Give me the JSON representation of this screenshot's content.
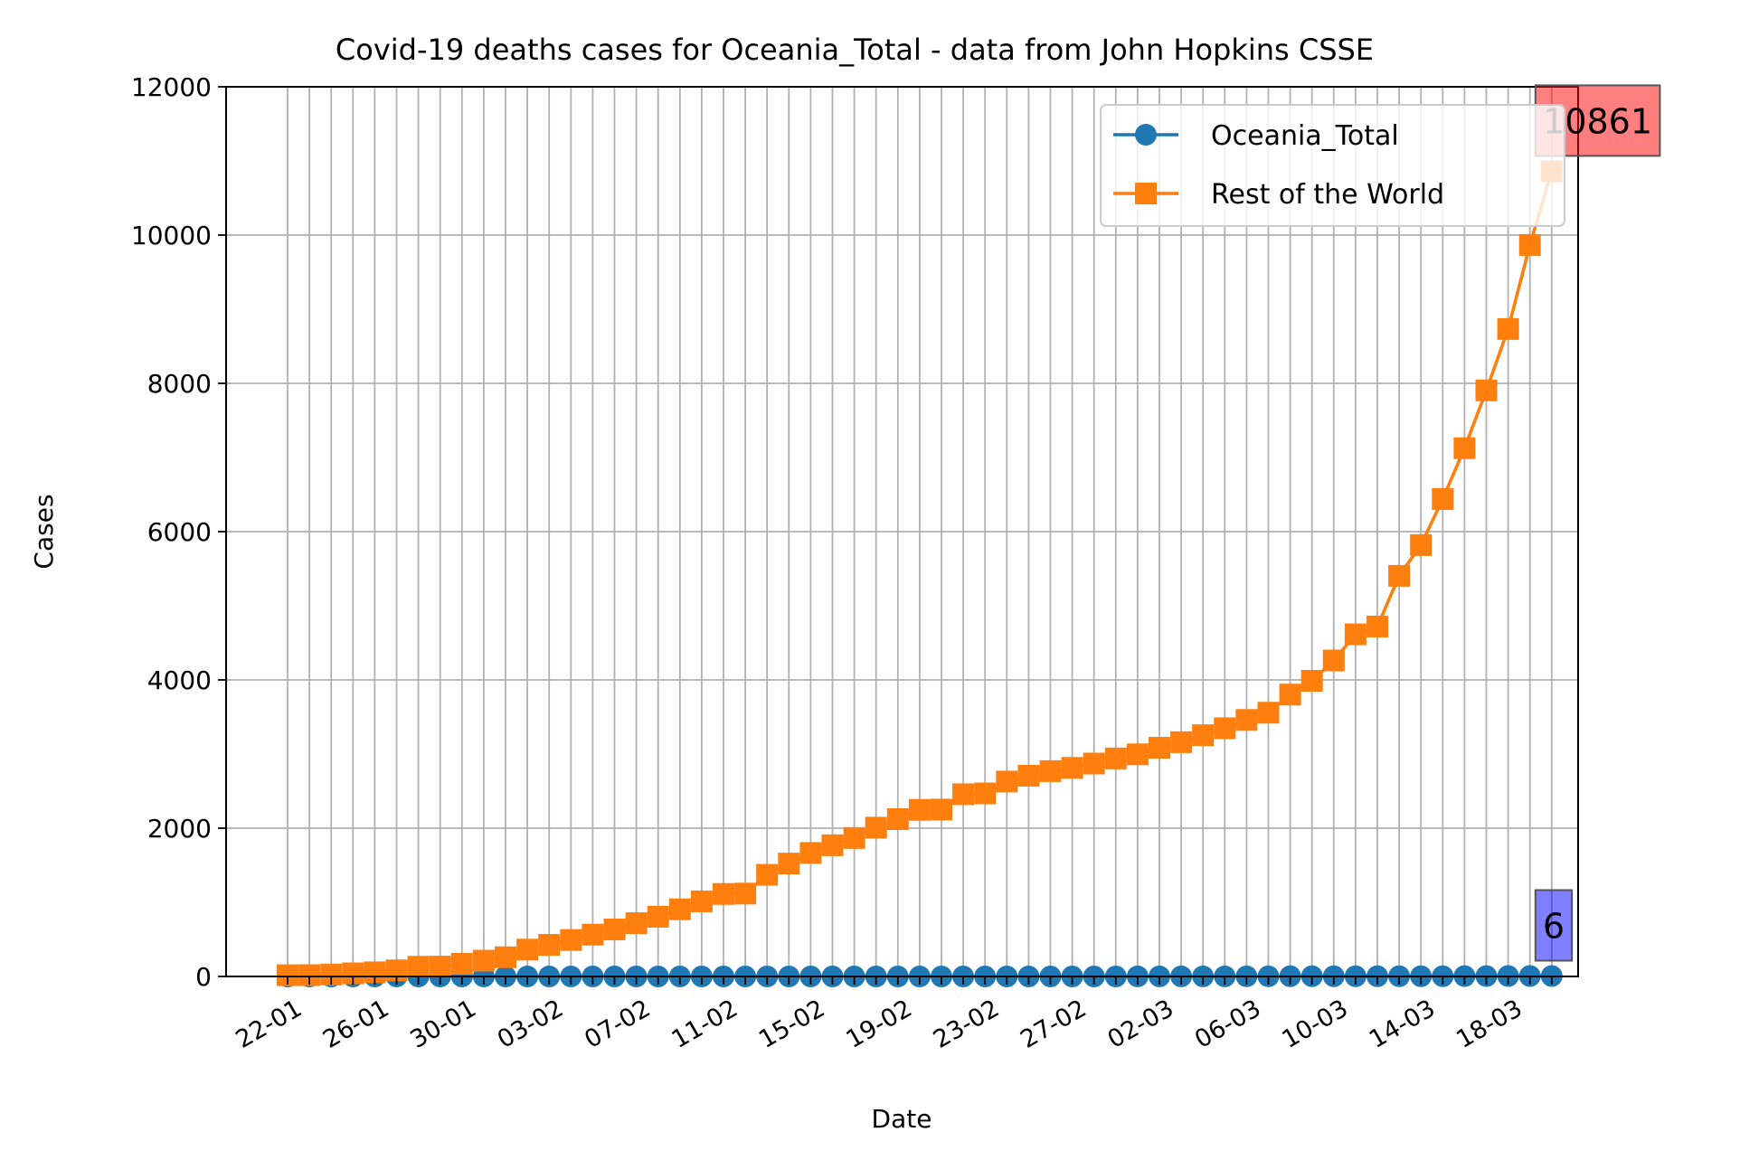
{
  "chart_data": {
    "type": "line",
    "title": "Covid-19 deaths cases for Oceania_Total - data from John Hopkins CSSE",
    "xlabel": "Date",
    "ylabel": "Cases",
    "ylim": [
      0,
      12000
    ],
    "yticks": [
      "0",
      "2000",
      "4000",
      "6000",
      "8000",
      "10000",
      "12000"
    ],
    "xtick_labels": [
      "22-01",
      "26-01",
      "30-01",
      "03-02",
      "07-02",
      "11-02",
      "15-02",
      "19-02",
      "23-02",
      "27-02",
      "02-03",
      "06-03",
      "10-03",
      "14-03",
      "18-03"
    ],
    "x": [
      "22-01",
      "23-01",
      "24-01",
      "25-01",
      "26-01",
      "27-01",
      "28-01",
      "29-01",
      "30-01",
      "31-01",
      "01-02",
      "02-02",
      "03-02",
      "04-02",
      "05-02",
      "06-02",
      "07-02",
      "08-02",
      "09-02",
      "10-02",
      "11-02",
      "12-02",
      "13-02",
      "14-02",
      "15-02",
      "16-02",
      "17-02",
      "18-02",
      "19-02",
      "20-02",
      "21-02",
      "22-02",
      "23-02",
      "24-02",
      "25-02",
      "26-02",
      "27-02",
      "28-02",
      "29-02",
      "01-03",
      "02-03",
      "03-03",
      "04-03",
      "05-03",
      "06-03",
      "07-03",
      "08-03",
      "09-03",
      "10-03",
      "11-03",
      "12-03",
      "13-03",
      "14-03",
      "15-03",
      "16-03",
      "17-03",
      "18-03",
      "19-03",
      "20-03"
    ],
    "grid": true,
    "legend_position": "top-right",
    "series": [
      {
        "name": "Oceania_Total",
        "color": "#1f77b4",
        "marker": "circle",
        "values": [
          0,
          0,
          0,
          0,
          0,
          0,
          0,
          0,
          0,
          0,
          0,
          0,
          0,
          0,
          0,
          0,
          0,
          0,
          0,
          0,
          0,
          0,
          0,
          0,
          0,
          0,
          0,
          0,
          0,
          0,
          0,
          0,
          0,
          0,
          0,
          0,
          0,
          0,
          0,
          1,
          1,
          1,
          1,
          1,
          2,
          2,
          3,
          3,
          3,
          3,
          3,
          3,
          3,
          3,
          5,
          5,
          6,
          6,
          6
        ]
      },
      {
        "name": "Rest of the World",
        "color": "#ff7f0e",
        "marker": "square",
        "values": [
          17,
          18,
          26,
          42,
          56,
          82,
          131,
          133,
          171,
          213,
          259,
          362,
          426,
          492,
          564,
          634,
          719,
          806,
          906,
          1013,
          1113,
          1118,
          1371,
          1523,
          1666,
          1770,
          1868,
          2007,
          2122,
          2247,
          2251,
          2458,
          2469,
          2629,
          2708,
          2770,
          2814,
          2872,
          2941,
          2996,
          3085,
          3160,
          3254,
          3348,
          3460,
          3558,
          3802,
          3988,
          4262,
          4615,
          4720,
          5404,
          5819,
          6440,
          7126,
          7905,
          8733,
          9867,
          10861
        ]
      }
    ],
    "annotations": [
      {
        "text": "10861",
        "series": "Rest of the World",
        "box_color": "#ff0000"
      },
      {
        "text": "6",
        "series": "Oceania_Total",
        "box_color": "#0000ff"
      }
    ]
  }
}
